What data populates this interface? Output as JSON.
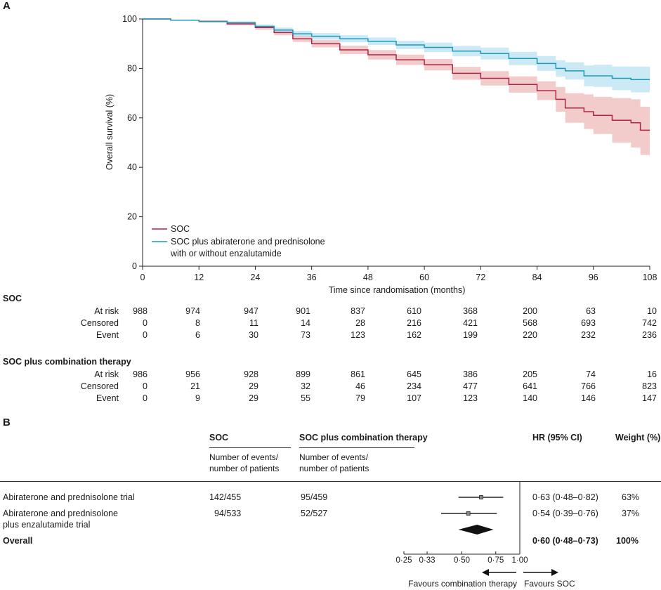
{
  "panel_a": {
    "letter": "A",
    "ylabel": "Overall survival (%)",
    "xlabel": "Time since randomisation (months)",
    "legend": [
      "SOC",
      "SOC plus abiraterone and prednisolone",
      "with or without enzalutamide"
    ]
  },
  "chart_data": [
    {
      "type": "line",
      "xlabel": "Time since randomisation (months)",
      "ylabel": "Overall survival (%)",
      "xlim": [
        0,
        108
      ],
      "ylim": [
        0,
        100
      ],
      "xticks": [
        0,
        12,
        24,
        36,
        48,
        60,
        72,
        84,
        96,
        108
      ],
      "yticks": [
        0,
        20,
        40,
        60,
        80,
        100
      ],
      "legend_position": "bottom-left",
      "series": [
        {
          "name": "SOC",
          "color": "#b0234a",
          "band_color": "#eaa9a9",
          "x": [
            0,
            6,
            12,
            18,
            24,
            28,
            32,
            36,
            42,
            48,
            54,
            60,
            66,
            72,
            78,
            84,
            88,
            90,
            94,
            96,
            100,
            104,
            106,
            108
          ],
          "y": [
            100,
            99.5,
            99,
            98,
            96.5,
            94.5,
            92,
            90,
            87.5,
            85.5,
            83.5,
            81.5,
            78,
            76,
            73.5,
            71,
            67.5,
            64,
            62.5,
            61,
            59,
            58,
            55,
            55
          ],
          "lower": [
            100,
            99.3,
            98.6,
            97.4,
            95.6,
            93.4,
            90.7,
            88.5,
            85.8,
            83.6,
            81.4,
            79.2,
            75.4,
            73.1,
            70.2,
            67.2,
            62.5,
            58,
            55.5,
            53.5,
            50,
            48,
            45,
            45
          ],
          "upper": [
            100,
            99.7,
            99.4,
            98.6,
            97.4,
            95.6,
            93.3,
            91.5,
            89.2,
            87.4,
            85.6,
            83.8,
            80.6,
            78.9,
            76.8,
            74.8,
            72.5,
            70,
            69.5,
            68.5,
            68,
            67.5,
            64.5,
            64.5
          ]
        },
        {
          "name": "SOC plus abiraterone and prednisolone with or without enzalutamide",
          "color": "#1e9ab8",
          "band_color": "#a8dcf0",
          "x": [
            0,
            6,
            12,
            18,
            24,
            28,
            32,
            36,
            42,
            48,
            54,
            60,
            66,
            72,
            78,
            84,
            88,
            90,
            94,
            96,
            100,
            104,
            106,
            108
          ],
          "y": [
            100,
            99.5,
            99,
            98.5,
            97,
            95.5,
            94,
            93,
            92,
            91,
            89.5,
            88.5,
            87,
            86,
            84,
            82,
            80,
            79,
            77,
            77,
            76,
            75.5,
            75.5,
            75.5
          ],
          "lower": [
            100,
            99.3,
            98.7,
            98,
            96.2,
            94.5,
            92.8,
            91.7,
            90.6,
            89.5,
            87.8,
            86.6,
            84.9,
            83.6,
            81.3,
            79,
            76.7,
            75.5,
            72.8,
            72.5,
            71.2,
            70.3,
            70.3,
            70.3
          ],
          "upper": [
            100,
            99.7,
            99.3,
            99,
            97.8,
            96.5,
            95.2,
            94.3,
            93.4,
            92.5,
            91.2,
            90.4,
            89.1,
            88.4,
            86.7,
            85,
            83.3,
            82.5,
            81.2,
            81.5,
            80.8,
            80.7,
            80.7,
            80.7
          ]
        }
      ]
    },
    {
      "type": "forest",
      "xscale": "log",
      "xticks": [
        "0·25",
        "0·33",
        "0·50",
        "0·75",
        "1·00"
      ],
      "xtick_values": [
        0.25,
        0.33,
        0.5,
        0.75,
        1.0
      ],
      "reference_line": 1.0,
      "favours_left": "Favours combination therapy",
      "favours_right": "Favours SOC",
      "rows": [
        {
          "label": "Abiraterone and prednisolone trial",
          "hr": 0.63,
          "lower": 0.48,
          "upper": 0.82,
          "weight": 63
        },
        {
          "label": "Abiraterone and prednisolone plus enzalutamide trial",
          "hr": 0.54,
          "lower": 0.39,
          "upper": 0.76,
          "weight": 37
        }
      ],
      "overall": {
        "label": "Overall",
        "hr": 0.6,
        "lower": 0.48,
        "upper": 0.73,
        "weight": 100
      }
    }
  ],
  "risk_table": {
    "arm1_title": "SOC",
    "arm2_title": "SOC plus combination therapy",
    "row_labels": [
      "At risk",
      "Censored",
      "Event"
    ],
    "arm1": [
      [
        "988",
        "974",
        "947",
        "901",
        "837",
        "610",
        "368",
        "200",
        "63",
        "10"
      ],
      [
        "0",
        "8",
        "11",
        "14",
        "28",
        "216",
        "421",
        "568",
        "693",
        "742"
      ],
      [
        "0",
        "6",
        "30",
        "73",
        "123",
        "162",
        "199",
        "220",
        "232",
        "236"
      ]
    ],
    "arm2": [
      [
        "986",
        "956",
        "928",
        "899",
        "861",
        "645",
        "386",
        "205",
        "74",
        "16"
      ],
      [
        "0",
        "21",
        "29",
        "32",
        "46",
        "234",
        "477",
        "641",
        "766",
        "823"
      ],
      [
        "0",
        "9",
        "29",
        "55",
        "79",
        "107",
        "123",
        "140",
        "146",
        "147"
      ]
    ]
  },
  "panel_b": {
    "letter": "B",
    "col_soc": "SOC",
    "col_soc_sub": [
      "Number of events/",
      "number of patients"
    ],
    "col_comb": "SOC plus combination therapy",
    "col_comb_sub": [
      "Number of events/",
      "number of patients"
    ],
    "col_hr": "HR (95% CI)",
    "col_weight": "Weight (%)",
    "rows": [
      {
        "label": [
          "Abiraterone and prednisolone trial"
        ],
        "soc": "142/455",
        "comb": "95/459",
        "hr_text": "0·63 (0·48–0·82)",
        "weight_text": "63%"
      },
      {
        "label": [
          "Abiraterone and prednisolone",
          "plus enzalutamide trial"
        ],
        "soc": "94/533",
        "comb": "52/527",
        "hr_text": "0·54 (0·39–0·76)",
        "weight_text": "37%"
      }
    ],
    "overall": {
      "label": "Overall",
      "hr_text": "0·60 (0·48–0·73)",
      "weight_text": "100%"
    }
  }
}
